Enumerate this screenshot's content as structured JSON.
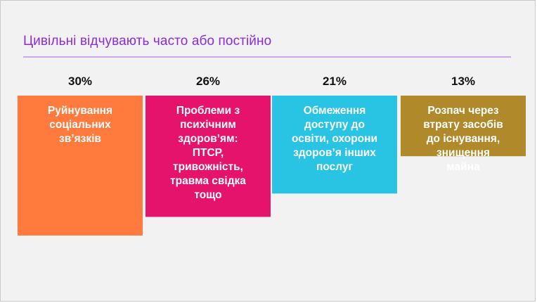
{
  "chart_data": {
    "type": "bar",
    "title": "Цивільні відчувають часто або постійно",
    "categories": [
      [
        "Руйнування",
        "соціальних",
        "зв’язків"
      ],
      [
        "Проблеми з",
        "психічним",
        "здоров’ям:",
        "ПТСР,",
        "тривожність,",
        "травма свідка",
        "тощо"
      ],
      [
        "Обмеження",
        "доступу до",
        "освіти, охорони",
        "здоров’я інших",
        "послуг"
      ],
      [
        "Розпач через",
        "втрату засобів",
        "до існування,",
        "знищення",
        "майна"
      ]
    ],
    "values": [
      30,
      26,
      21,
      13
    ],
    "value_labels": [
      "30%",
      "26%",
      "21%",
      "13%"
    ],
    "colors": [
      "#ff7a3d",
      "#e6136c",
      "#29c3e3",
      "#b08a2a"
    ],
    "xlabel": "",
    "ylabel": "",
    "ylim": [
      0,
      30
    ],
    "grid": false,
    "legend": "none"
  }
}
